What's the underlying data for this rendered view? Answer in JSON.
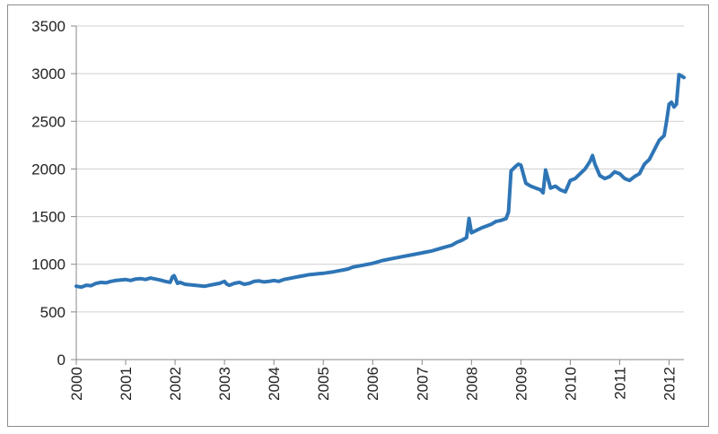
{
  "chart_data": {
    "type": "line",
    "title": "",
    "xlabel": "",
    "ylabel": "",
    "xlim": [
      2000.0,
      2012.3
    ],
    "ylim": [
      0,
      3500
    ],
    "y_ticks": [
      "0",
      "500",
      "1000",
      "1500",
      "2000",
      "2500",
      "3000",
      "3500"
    ],
    "x_ticks": [
      "2000",
      "2001",
      "2002",
      "2003",
      "2004",
      "2005",
      "2006",
      "2007",
      "2008",
      "2009",
      "2010",
      "2011",
      "2012"
    ],
    "grid": {
      "horizontal": true,
      "vertical": false
    },
    "legend": "none",
    "line_color": "#2e75b6",
    "series": [
      {
        "x": [
          2000.0,
          2000.1,
          2000.2,
          2000.3,
          2000.4,
          2000.5,
          2000.6,
          2000.7,
          2000.8,
          2000.9,
          2001.0,
          2001.1,
          2001.2,
          2001.3,
          2001.4,
          2001.5,
          2001.6,
          2001.7,
          2001.8,
          2001.9,
          2001.95,
          2001.98,
          2002.05,
          2002.1,
          2002.2,
          2002.4,
          2002.6,
          2002.8,
          2002.9,
          2003.0,
          2003.05,
          2003.1,
          2003.2,
          2003.3,
          2003.4,
          2003.5,
          2003.6,
          2003.7,
          2003.8,
          2003.9,
          2004.0,
          2004.1,
          2004.2,
          2004.3,
          2004.4,
          2004.5,
          2004.6,
          2004.7,
          2004.8,
          2004.9,
          2005.0,
          2005.2,
          2005.4,
          2005.5,
          2005.6,
          2005.8,
          2006.0,
          2006.2,
          2006.4,
          2006.6,
          2006.8,
          2007.0,
          2007.2,
          2007.4,
          2007.6,
          2007.7,
          2007.8,
          2007.9,
          2007.95,
          2008.0,
          2008.2,
          2008.4,
          2008.5,
          2008.6,
          2008.7,
          2008.75,
          2008.8,
          2008.9,
          2008.95,
          2009.0,
          2009.1,
          2009.2,
          2009.3,
          2009.4,
          2009.45,
          2009.5,
          2009.6,
          2009.7,
          2009.8,
          2009.9,
          2010.0,
          2010.1,
          2010.2,
          2010.3,
          2010.4,
          2010.45,
          2010.5,
          2010.6,
          2010.7,
          2010.8,
          2010.9,
          2011.0,
          2011.1,
          2011.2,
          2011.3,
          2011.4,
          2011.5,
          2011.6,
          2011.7,
          2011.8,
          2011.9,
          2011.95,
          2012.0,
          2012.05,
          2012.1,
          2012.15,
          2012.2,
          2012.3
        ],
        "y": [
          770,
          760,
          780,
          775,
          800,
          810,
          805,
          820,
          830,
          835,
          840,
          830,
          845,
          850,
          840,
          855,
          845,
          835,
          820,
          810,
          870,
          880,
          800,
          810,
          790,
          780,
          770,
          790,
          800,
          820,
          790,
          780,
          800,
          810,
          790,
          800,
          820,
          825,
          815,
          820,
          830,
          820,
          840,
          850,
          860,
          870,
          880,
          890,
          895,
          900,
          905,
          920,
          940,
          950,
          970,
          990,
          1010,
          1040,
          1060,
          1080,
          1100,
          1120,
          1140,
          1170,
          1200,
          1230,
          1250,
          1280,
          1480,
          1330,
          1380,
          1420,
          1450,
          1460,
          1480,
          1550,
          1980,
          2030,
          2050,
          2040,
          1850,
          1820,
          1800,
          1780,
          1750,
          1990,
          1800,
          1820,
          1780,
          1760,
          1880,
          1900,
          1950,
          2000,
          2080,
          2140,
          2050,
          1930,
          1900,
          1920,
          1970,
          1950,
          1900,
          1880,
          1920,
          1950,
          2050,
          2100,
          2200,
          2300,
          2350,
          2500,
          2680,
          2700,
          2650,
          2680,
          2990,
          2960
        ]
      }
    ]
  }
}
